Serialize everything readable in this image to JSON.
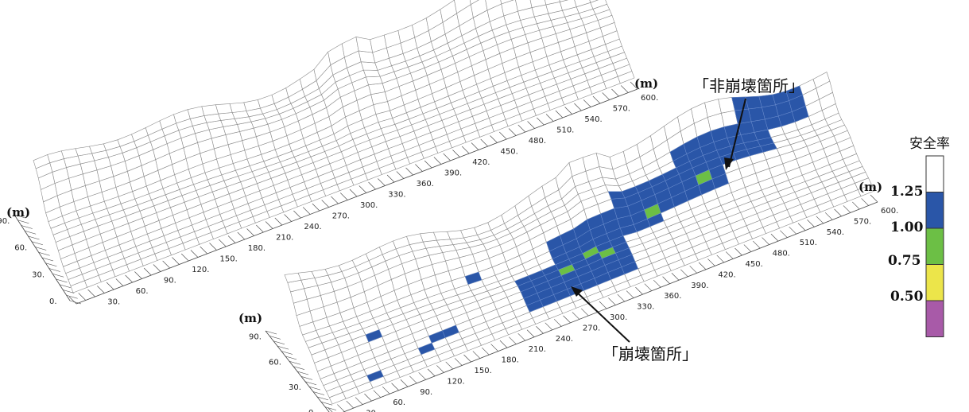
{
  "unit_label": "(m)",
  "x_ticks": [
    "30.",
    "60.",
    "90.",
    "120.",
    "150.",
    "180.",
    "210.",
    "240.",
    "270.",
    "300.",
    "330.",
    "360.",
    "390.",
    "420.",
    "450.",
    "480.",
    "510.",
    "540.",
    "570.",
    "600."
  ],
  "y_ticks": [
    "0.",
    "30.",
    "60.",
    "90."
  ],
  "annotations": {
    "non_collapse": "「非崩壊箇所」",
    "collapse": "「崩壊箇所」"
  },
  "legend": {
    "title": "安全率",
    "colors": [
      "#ffffff",
      "#2a56a8",
      "#6cbf45",
      "#ece54a",
      "#a85aa8"
    ],
    "values": [
      "1.25",
      "1.00",
      "0.75",
      "0.50"
    ]
  },
  "colors": {
    "grid_line": "#8a8a8a",
    "ridge": "#b8b8b8"
  }
}
